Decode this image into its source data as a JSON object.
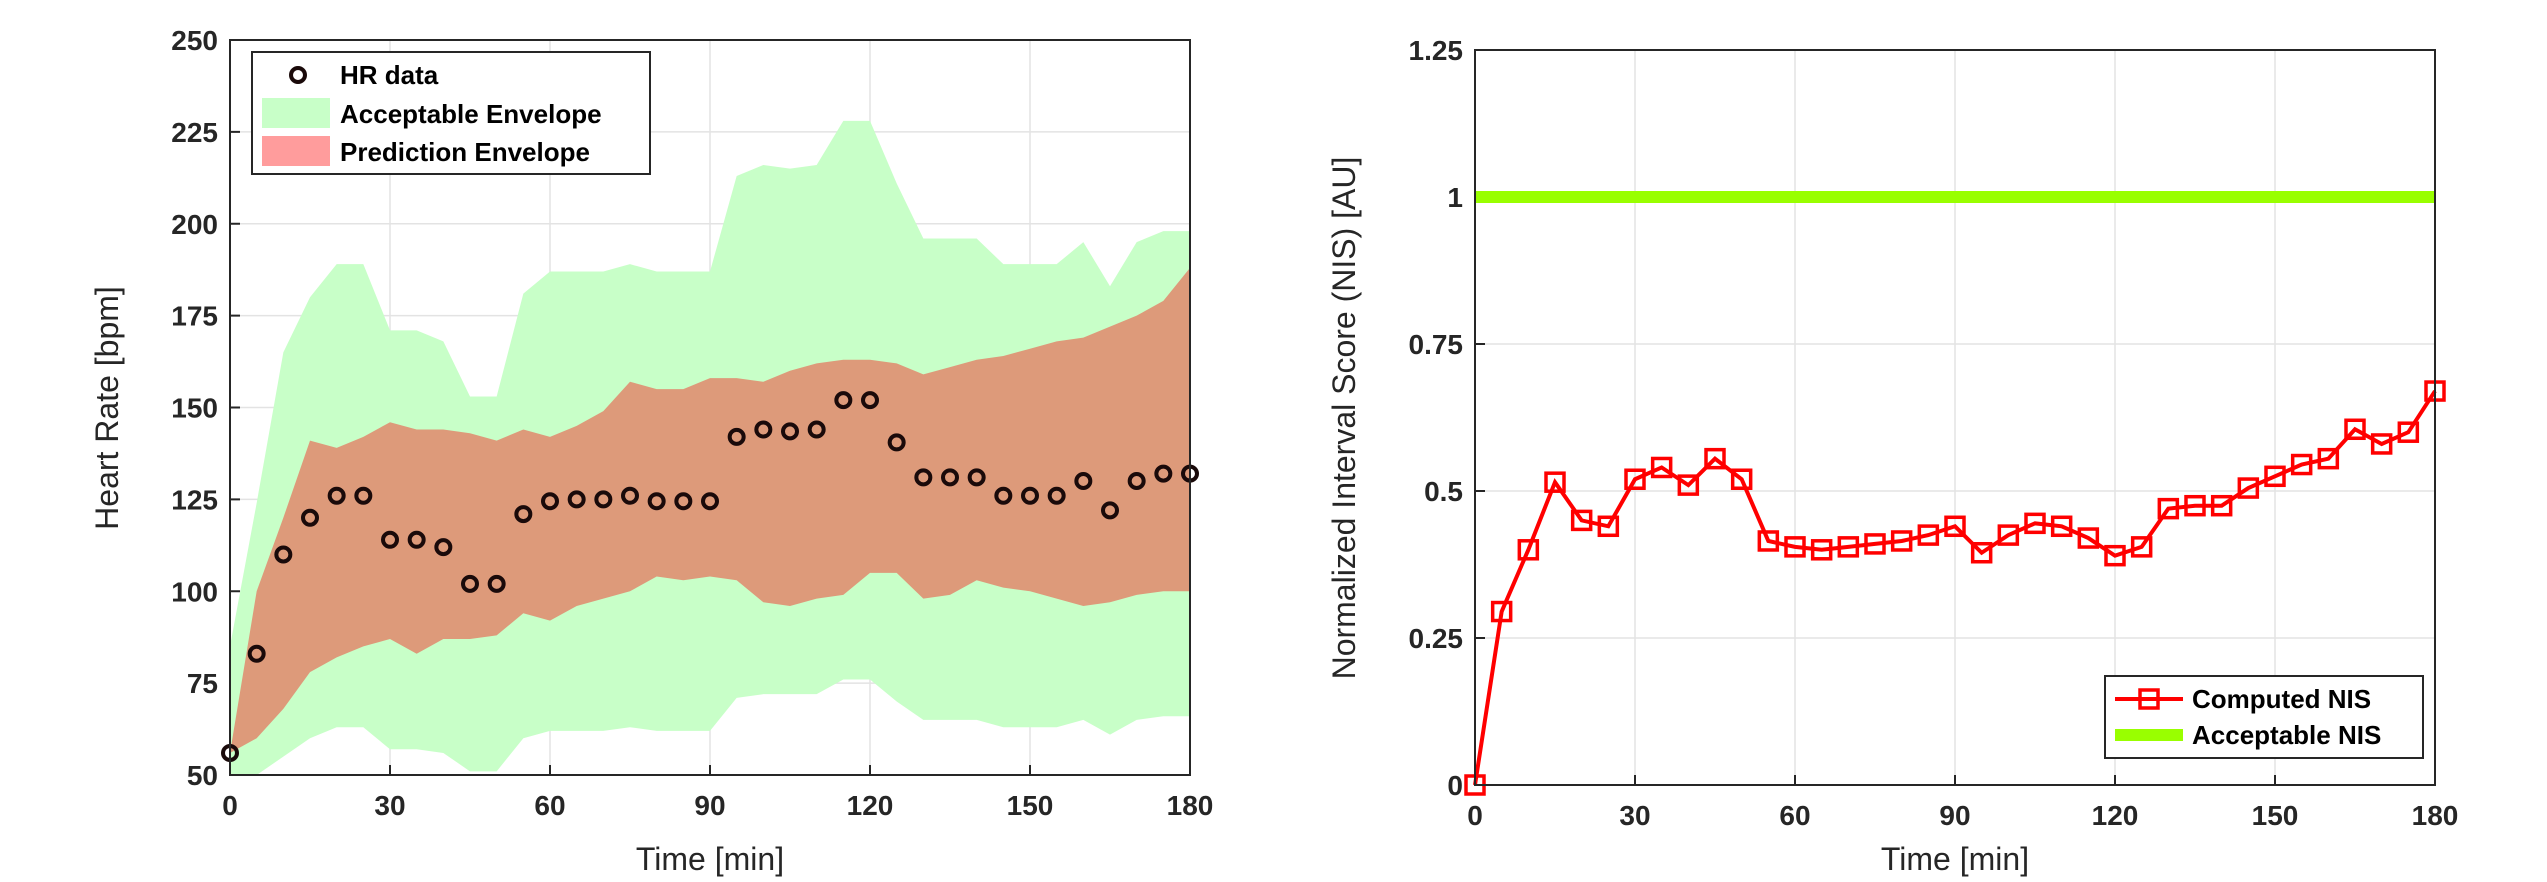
{
  "chart_data": [
    {
      "type": "scatter",
      "xlabel": "Time [min]",
      "ylabel": "Heart Rate [bpm]",
      "xlim": [
        0,
        180
      ],
      "ylim": [
        50,
        250
      ],
      "xticks": [
        "0",
        "30",
        "60",
        "90",
        "120",
        "150",
        "180"
      ],
      "yticks": [
        "50",
        "75",
        "100",
        "125",
        "150",
        "175",
        "200",
        "225",
        "250"
      ],
      "grid": true,
      "legend_position": "top-left",
      "legend": [
        "HR data",
        "Acceptable Envelope",
        "Prediction Envelope"
      ],
      "x": [
        0,
        5,
        10,
        15,
        20,
        25,
        30,
        35,
        40,
        45,
        50,
        55,
        60,
        65,
        70,
        75,
        80,
        85,
        90,
        95,
        100,
        105,
        110,
        115,
        120,
        125,
        130,
        135,
        140,
        145,
        150,
        155,
        160,
        165,
        170,
        175,
        180
      ],
      "series": [
        {
          "name": "HR data",
          "values": [
            56,
            83,
            110,
            120,
            126,
            126,
            114,
            114,
            112,
            102,
            102,
            121,
            124.5,
            125,
            125,
            126,
            124.5,
            124.5,
            124.5,
            142,
            144,
            143.5,
            144,
            152,
            152,
            140.5,
            131,
            131,
            131,
            126,
            126,
            126,
            130,
            122,
            130,
            132,
            132
          ],
          "color": "#1a0a0a"
        },
        {
          "name": "Acceptable Envelope",
          "lower": [
            45,
            46,
            55,
            60,
            63,
            63,
            57,
            57,
            56,
            51,
            51,
            60,
            62,
            62,
            62,
            63,
            62,
            62,
            62,
            71,
            72,
            72,
            72,
            76,
            76,
            70,
            65,
            65,
            65,
            63,
            63,
            63,
            65,
            61,
            65,
            66,
            66
          ],
          "upper": [
            85,
            124,
            165,
            180,
            189,
            189,
            171,
            171,
            168,
            153,
            153,
            181,
            187,
            187,
            187,
            189,
            187,
            187,
            187,
            213,
            216,
            215,
            216,
            228,
            228,
            211,
            196,
            196,
            196,
            189,
            189,
            189,
            195,
            183,
            195,
            198,
            198
          ],
          "color": "#c8ffc8"
        },
        {
          "name": "Prediction Envelope",
          "lower": [
            56,
            60,
            68,
            78,
            82,
            85,
            87,
            83,
            87,
            87,
            88,
            94,
            92,
            96,
            98,
            100,
            104,
            103,
            104,
            103,
            97,
            96,
            98,
            99,
            105,
            105,
            98,
            99,
            103,
            101,
            100,
            98,
            96,
            97,
            99,
            100,
            100
          ],
          "upper": [
            56,
            100,
            120,
            141,
            139,
            142,
            146,
            144,
            144,
            143,
            141,
            144,
            142,
            145,
            149,
            157,
            155,
            155,
            158,
            158,
            157,
            160,
            162,
            163,
            163,
            162,
            159,
            161,
            163,
            164,
            166,
            168,
            169,
            172,
            175,
            179,
            188
          ],
          "color": "#dd9a7a"
        }
      ]
    },
    {
      "type": "line",
      "xlabel": "Time [min]",
      "ylabel": "Normalized Interval Score (NIS) [AU]",
      "xlim": [
        0,
        180
      ],
      "ylim": [
        0,
        1.25
      ],
      "xticks": [
        "0",
        "30",
        "60",
        "90",
        "120",
        "150",
        "180"
      ],
      "yticks": [
        "0",
        "0.25",
        "0.5",
        "0.75",
        "1",
        "1.25"
      ],
      "grid": true,
      "legend_position": "bottom-right",
      "legend": [
        "Computed NIS",
        "Acceptable NIS"
      ],
      "x": [
        0,
        5,
        10,
        15,
        20,
        25,
        30,
        35,
        40,
        45,
        50,
        55,
        60,
        65,
        70,
        75,
        80,
        85,
        90,
        95,
        100,
        105,
        110,
        115,
        120,
        125,
        130,
        135,
        140,
        145,
        150,
        155,
        160,
        165,
        170,
        175,
        180
      ],
      "series": [
        {
          "name": "Computed NIS",
          "values": [
            0,
            0.295,
            0.4,
            0.515,
            0.45,
            0.44,
            0.52,
            0.54,
            0.51,
            0.555,
            0.52,
            0.415,
            0.405,
            0.4,
            0.405,
            0.41,
            0.415,
            0.425,
            0.44,
            0.395,
            0.425,
            0.445,
            0.44,
            0.42,
            0.39,
            0.405,
            0.47,
            0.475,
            0.475,
            0.505,
            0.525,
            0.545,
            0.555,
            0.605,
            0.58,
            0.6,
            0.67
          ],
          "color": "#ff0000"
        },
        {
          "name": "Acceptable NIS",
          "values": [
            1,
            1
          ],
          "x": [
            0,
            180
          ],
          "color": "#99ff00"
        }
      ]
    }
  ]
}
